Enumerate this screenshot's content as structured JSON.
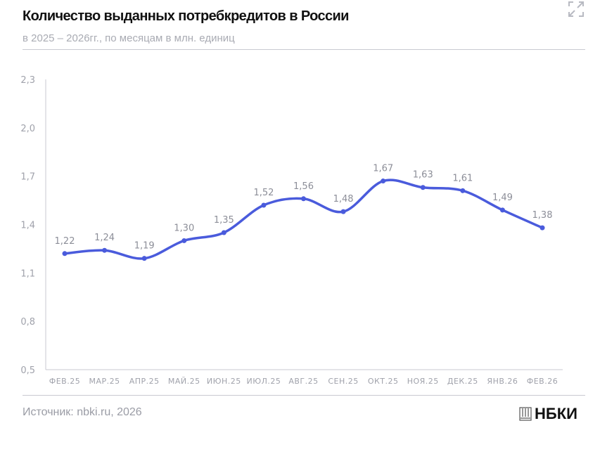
{
  "header": {
    "title": "Количество выданных потребкредитов в России",
    "subtitle": "в 2025 – 2026гг., по месяцам в млн. единиц"
  },
  "footer": {
    "source": "Источник: nbki.ru, 2026",
    "logo": "НБКИ"
  },
  "icons": {
    "expand": "expand-icon",
    "logo": "nbki-logo-icon"
  },
  "colors": {
    "line": "#4a5bdc",
    "axis": "#c9cad1",
    "tick_text": "#a0a2ab",
    "label_text": "#8c8e98"
  },
  "chart_data": {
    "type": "line",
    "title": "Количество выданных потребкредитов в России",
    "subtitle": "в 2025 – 2026гг., по месяцам в млн. единиц",
    "categories": [
      "ФЕВ.25",
      "МАР.25",
      "АПР.25",
      "МАЙ.25",
      "ИЮН.25",
      "ИЮЛ.25",
      "АВГ.25",
      "СЕН.25",
      "ОКТ.25",
      "НОЯ.25",
      "ДЕК.25",
      "ЯНВ.26",
      "ФЕВ.26"
    ],
    "values": [
      1.22,
      1.24,
      1.19,
      1.3,
      1.35,
      1.52,
      1.56,
      1.48,
      1.67,
      1.63,
      1.61,
      1.49,
      1.38
    ],
    "data_labels": [
      "1,22",
      "1,24",
      "1,19",
      "1,30",
      "1,35",
      "1,52",
      "1,56",
      "1,48",
      "1,67",
      "1,63",
      "1,61",
      "1,49",
      "1,38"
    ],
    "ylim": [
      0.5,
      2.3
    ],
    "yticks": [
      0.5,
      0.8,
      1.1,
      1.4,
      1.7,
      2.0,
      2.3
    ],
    "ytick_labels": [
      "0,5",
      "0,8",
      "1,1",
      "1,4",
      "1,7",
      "2,0",
      "2,3"
    ],
    "grid": false,
    "smooth": true
  }
}
